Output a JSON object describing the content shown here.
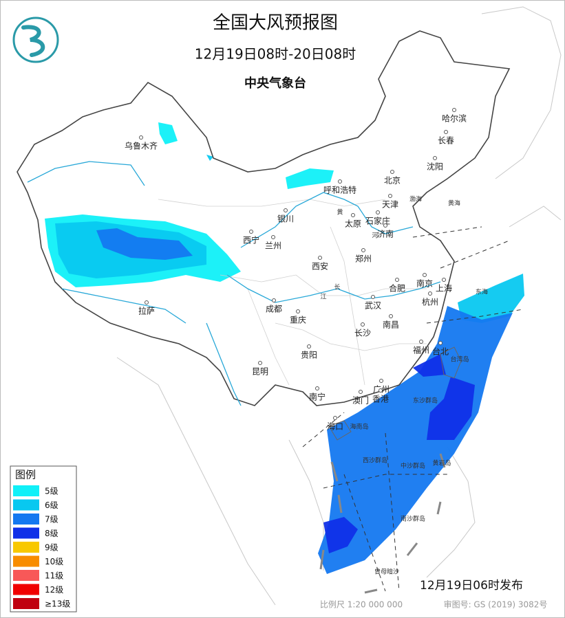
{
  "header": {
    "title": "全国大风预报图",
    "time_range": "12月19日08时-20日08时",
    "issuer": "中央气象台"
  },
  "legend": {
    "title": "图例",
    "items": [
      {
        "label": "5级",
        "color": "#10f0f8"
      },
      {
        "label": "6级",
        "color": "#08c8f0"
      },
      {
        "label": "7级",
        "color": "#1478f0"
      },
      {
        "label": "8级",
        "color": "#1030e8"
      },
      {
        "label": "9级",
        "color": "#f8c800"
      },
      {
        "label": "10级",
        "color": "#f88c00"
      },
      {
        "label": "11级",
        "color": "#f85858"
      },
      {
        "label": "12级",
        "color": "#f00000"
      },
      {
        "label": "≥13级",
        "color": "#c00010"
      }
    ]
  },
  "cities": [
    "乌鲁木齐",
    "哈尔滨",
    "长春",
    "沈阳",
    "北京",
    "天津",
    "呼和浩特",
    "银川",
    "太原",
    "石家庄",
    "济南",
    "西宁",
    "兰州",
    "郑州",
    "西安",
    "合肥",
    "南京",
    "上海",
    "杭州",
    "武汉",
    "成都",
    "重庆",
    "拉萨",
    "长沙",
    "南昌",
    "福州",
    "台北",
    "贵阳",
    "昆明",
    "广州",
    "南宁",
    "澳门",
    "香港",
    "海口"
  ],
  "places": [
    "台湾岛",
    "海南岛",
    "渤海",
    "黄海",
    "东海",
    "东沙群岛",
    "西沙群岛",
    "中沙群岛",
    "黄岩岛",
    "南沙群岛",
    "曾母暗沙",
    "长",
    "江",
    "黄",
    "河"
  ],
  "footer": {
    "publish": "12月19日06时发布",
    "scale": "比例尺 1:20 000 000",
    "map_no": "审图号: GS (2019) 3082号"
  }
}
